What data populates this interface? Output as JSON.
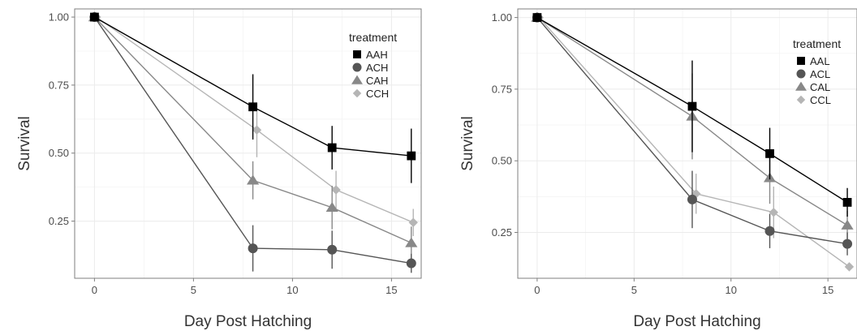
{
  "chart_data": [
    {
      "type": "line",
      "title": "",
      "xlabel": "Day Post Hatching",
      "ylabel": "Survival",
      "xlim": [
        -1,
        16.5
      ],
      "ylim": [
        0.04,
        1.03
      ],
      "xticks": [
        0,
        5,
        10,
        15
      ],
      "yticks": [
        0.25,
        0.5,
        0.75,
        1.0
      ],
      "ytick_labels": [
        "0.25",
        "0.50",
        "0.75",
        "1.00"
      ],
      "grid": true,
      "legend": {
        "title": "treatment",
        "placement": "top-right"
      },
      "series": [
        {
          "name": "AAH",
          "marker": "square",
          "color": "#000000",
          "x": [
            0,
            8,
            12,
            16
          ],
          "y": [
            1.0,
            0.67,
            0.52,
            0.49
          ],
          "err": [
            0,
            0.12,
            0.08,
            0.1
          ]
        },
        {
          "name": "ACH",
          "marker": "circle",
          "color": "#555555",
          "x": [
            0,
            8,
            12,
            16
          ],
          "y": [
            1.0,
            0.15,
            0.145,
            0.095
          ],
          "err": [
            0,
            0.085,
            0.07,
            0.035
          ]
        },
        {
          "name": "CAH",
          "marker": "triangle",
          "color": "#888888",
          "x": [
            0,
            8,
            12,
            16
          ],
          "y": [
            1.0,
            0.4,
            0.3,
            0.17
          ],
          "err": [
            0,
            0.07,
            0.08,
            0.06
          ]
        },
        {
          "name": "CCH",
          "marker": "diamond",
          "color": "#b5b5b5",
          "x": [
            0.1,
            8.2,
            12.2,
            16.1
          ],
          "y": [
            1.0,
            0.585,
            0.365,
            0.245
          ],
          "err": [
            0,
            0.1,
            0.07,
            0.05
          ]
        }
      ]
    },
    {
      "type": "line",
      "title": "",
      "xlabel": "Day Post Hatching",
      "ylabel": "Survival",
      "xlim": [
        -1,
        16.5
      ],
      "ylim": [
        0.09,
        1.03
      ],
      "xticks": [
        0,
        5,
        10,
        15
      ],
      "yticks": [
        0.25,
        0.5,
        0.75,
        1.0
      ],
      "ytick_labels": [
        "0.25",
        "0.50",
        "0.75",
        "1.00"
      ],
      "grid": true,
      "legend": {
        "title": "treatment",
        "placement": "top-right"
      },
      "series": [
        {
          "name": "AAL",
          "marker": "square",
          "color": "#000000",
          "x": [
            0,
            8,
            12,
            16
          ],
          "y": [
            1.0,
            0.69,
            0.525,
            0.355
          ],
          "err": [
            0,
            0.16,
            0.09,
            0.05
          ]
        },
        {
          "name": "ACL",
          "marker": "circle",
          "color": "#555555",
          "x": [
            0,
            8,
            12,
            16
          ],
          "y": [
            1.0,
            0.365,
            0.255,
            0.21
          ],
          "err": [
            0,
            0.1,
            0.06,
            0.04
          ]
        },
        {
          "name": "CAL",
          "marker": "triangle",
          "color": "#888888",
          "x": [
            0,
            8,
            12,
            16
          ],
          "y": [
            1.0,
            0.655,
            0.44,
            0.275
          ],
          "err": [
            0,
            0.15,
            0.09,
            0.05
          ]
        },
        {
          "name": "CCL",
          "marker": "diamond",
          "color": "#b5b5b5",
          "x": [
            0.1,
            8.2,
            12.2,
            16.1
          ],
          "y": [
            1.0,
            0.385,
            0.32,
            0.13
          ],
          "err": [
            0,
            0.07,
            0.09,
            0
          ]
        }
      ]
    }
  ]
}
